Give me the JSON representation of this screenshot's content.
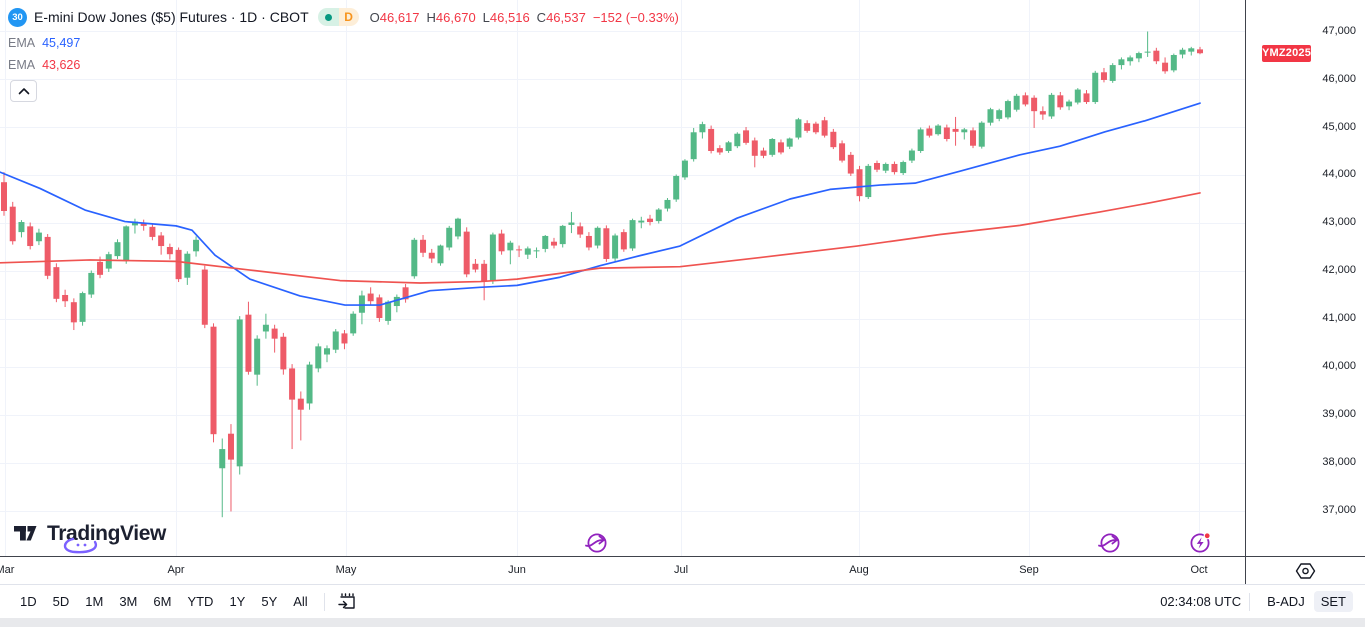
{
  "header": {
    "symbol_logo_text": "30",
    "title": "E-mini Dow Jones ($5) Futures · 1D · CBOT",
    "market_status": "open",
    "interval_badge": "D",
    "ohlc": {
      "o_label": "O",
      "o": "46,617",
      "h_label": "H",
      "h": "46,670",
      "l_label": "L",
      "l": "46,516",
      "c_label": "C",
      "c": "46,537",
      "change": "−152 (−0.33%)"
    },
    "indicators": [
      {
        "label": "EMA",
        "value": "45,497",
        "color": "#2962ff"
      },
      {
        "label": "EMA",
        "value": "43,626",
        "color": "#f23645"
      }
    ]
  },
  "watermark": {
    "brand": "TradingView"
  },
  "price_axis": {
    "last_price_label": "YMZ2025",
    "last_label_color": "#f23645"
  },
  "toolbar": {
    "ranges": [
      "1D",
      "5D",
      "1M",
      "3M",
      "6M",
      "YTD",
      "1Y",
      "5Y",
      "All"
    ],
    "go_to_date_icon": "calendar-arrow-icon",
    "time": "02:34:08 UTC",
    "adjustments": [
      {
        "label": "B-ADJ",
        "active": false
      },
      {
        "label": "SET",
        "active": true
      }
    ]
  },
  "chart_data": {
    "type": "candlestick",
    "title": "E-mini Dow Jones ($5) Futures",
    "exchange": "CBOT",
    "contract": "YMZ2025",
    "interval": "1D",
    "last_price": 46537,
    "last_bar": {
      "open": 46617,
      "high": 46670,
      "low": 46516,
      "close": 46537,
      "change": -152,
      "change_pct": -0.33
    },
    "grid": true,
    "ylim": [
      36062,
      47646
    ],
    "y_ticks": [
      37000,
      38000,
      39000,
      40000,
      41000,
      42000,
      43000,
      44000,
      45000,
      46000,
      47000
    ],
    "months": [
      "Mar",
      "Apr",
      "May",
      "Jun",
      "Jul",
      "Aug",
      "Sep",
      "Oct"
    ],
    "month_x": [
      5,
      176,
      346,
      517,
      681,
      859,
      1029,
      1199
    ],
    "x_range": [
      4,
      1200
    ],
    "up_color": "#54b987",
    "down_color": "#ee5b68",
    "candles": [
      [
        43850,
        44060,
        43150,
        43250
      ],
      [
        43340,
        43440,
        42550,
        42620
      ],
      [
        42810,
        43060,
        42700,
        43020
      ],
      [
        42930,
        43010,
        42450,
        42520
      ],
      [
        42620,
        42880,
        42540,
        42800
      ],
      [
        42710,
        42770,
        41830,
        41900
      ],
      [
        42080,
        42160,
        41350,
        41420
      ],
      [
        41500,
        41610,
        41250,
        41370
      ],
      [
        41350,
        41430,
        40770,
        40930
      ],
      [
        40940,
        41570,
        40860,
        41540
      ],
      [
        41510,
        42010,
        41440,
        41960
      ],
      [
        42190,
        42300,
        41850,
        41920
      ],
      [
        42050,
        42400,
        41980,
        42350
      ],
      [
        42310,
        42660,
        42250,
        42600
      ],
      [
        42220,
        42950,
        42150,
        42930
      ],
      [
        42950,
        43090,
        42780,
        43030
      ],
      [
        43010,
        43070,
        42840,
        42940
      ],
      [
        42920,
        42990,
        42640,
        42710
      ],
      [
        42740,
        42810,
        42340,
        42520
      ],
      [
        42500,
        42570,
        42240,
        42350
      ],
      [
        42440,
        42490,
        41770,
        41830
      ],
      [
        41860,
        42410,
        41710,
        42360
      ],
      [
        42410,
        42720,
        42300,
        42650
      ],
      [
        42030,
        42110,
        40810,
        40880
      ],
      [
        40840,
        40910,
        38430,
        38600
      ],
      [
        37890,
        38510,
        36870,
        38290
      ],
      [
        38610,
        38810,
        36990,
        38070
      ],
      [
        37930,
        41060,
        37760,
        40990
      ],
      [
        41090,
        41360,
        39840,
        39900
      ],
      [
        39840,
        40660,
        39610,
        40590
      ],
      [
        40740,
        41110,
        40590,
        40880
      ],
      [
        40800,
        40880,
        40300,
        40590
      ],
      [
        40630,
        40710,
        39840,
        39950
      ],
      [
        39970,
        40060,
        38290,
        39320
      ],
      [
        39340,
        39490,
        38470,
        39110
      ],
      [
        39240,
        40110,
        39110,
        40050
      ],
      [
        39970,
        40490,
        39890,
        40430
      ],
      [
        40260,
        40450,
        40100,
        40390
      ],
      [
        40360,
        40790,
        40290,
        40740
      ],
      [
        40700,
        40770,
        40370,
        40490
      ],
      [
        40700,
        41160,
        40650,
        41110
      ],
      [
        41130,
        41590,
        40890,
        41490
      ],
      [
        41530,
        41660,
        41290,
        41370
      ],
      [
        41450,
        41510,
        40940,
        41020
      ],
      [
        40960,
        41390,
        40880,
        41360
      ],
      [
        41270,
        41510,
        41140,
        41460
      ],
      [
        41660,
        41730,
        41340,
        41410
      ],
      [
        41890,
        42690,
        41840,
        42650
      ],
      [
        42650,
        42750,
        42290,
        42380
      ],
      [
        42380,
        42460,
        42170,
        42260
      ],
      [
        42160,
        42550,
        42110,
        42530
      ],
      [
        42490,
        42940,
        42430,
        42900
      ],
      [
        42720,
        43110,
        42660,
        43090
      ],
      [
        42820,
        42910,
        41870,
        41930
      ],
      [
        42150,
        42250,
        41970,
        42030
      ],
      [
        42150,
        42230,
        41390,
        41790
      ],
      [
        41790,
        42800,
        41730,
        42760
      ],
      [
        42780,
        42860,
        42340,
        42410
      ],
      [
        42430,
        42630,
        42140,
        42590
      ],
      [
        42450,
        42530,
        42290,
        42440
      ],
      [
        42340,
        42510,
        42250,
        42470
      ],
      [
        42410,
        42490,
        42270,
        42430
      ],
      [
        42460,
        42750,
        42390,
        42730
      ],
      [
        42610,
        42690,
        42470,
        42530
      ],
      [
        42560,
        42960,
        42490,
        42940
      ],
      [
        42960,
        43230,
        42790,
        43010
      ],
      [
        42930,
        43010,
        42690,
        42760
      ],
      [
        42730,
        42810,
        42430,
        42490
      ],
      [
        42530,
        42930,
        42470,
        42900
      ],
      [
        42890,
        42950,
        42190,
        42250
      ],
      [
        42260,
        42780,
        42200,
        42740
      ],
      [
        42810,
        42870,
        42400,
        42450
      ],
      [
        42470,
        43090,
        42420,
        43060
      ],
      [
        43010,
        43130,
        42890,
        43050
      ],
      [
        43090,
        43170,
        42950,
        43020
      ],
      [
        43040,
        43310,
        42990,
        43280
      ],
      [
        43300,
        43520,
        43240,
        43480
      ],
      [
        43490,
        44010,
        43440,
        43980
      ],
      [
        43950,
        44330,
        43900,
        44300
      ],
      [
        44330,
        44980,
        44280,
        44890
      ],
      [
        44890,
        45110,
        44760,
        45060
      ],
      [
        44960,
        45030,
        44450,
        44500
      ],
      [
        44560,
        44620,
        44420,
        44470
      ],
      [
        44500,
        44710,
        44460,
        44680
      ],
      [
        44600,
        44890,
        44560,
        44860
      ],
      [
        44930,
        45000,
        44630,
        44670
      ],
      [
        44720,
        44780,
        44160,
        44400
      ],
      [
        44510,
        44570,
        44350,
        44400
      ],
      [
        44420,
        44770,
        44380,
        44750
      ],
      [
        44680,
        44740,
        44430,
        44470
      ],
      [
        44590,
        44780,
        44540,
        44760
      ],
      [
        44780,
        45190,
        44740,
        45160
      ],
      [
        45080,
        45140,
        44880,
        44920
      ],
      [
        45070,
        45110,
        44850,
        44890
      ],
      [
        45140,
        45210,
        44780,
        44820
      ],
      [
        44900,
        44960,
        44540,
        44580
      ],
      [
        44660,
        44720,
        44260,
        44300
      ],
      [
        44420,
        44480,
        43980,
        44030
      ],
      [
        44120,
        44190,
        43450,
        43560
      ],
      [
        43540,
        44230,
        43500,
        44190
      ],
      [
        44250,
        44300,
        44060,
        44110
      ],
      [
        44090,
        44260,
        44040,
        44230
      ],
      [
        44230,
        44280,
        44010,
        44060
      ],
      [
        44040,
        44300,
        44000,
        44270
      ],
      [
        44300,
        44550,
        44250,
        44510
      ],
      [
        44500,
        44990,
        44460,
        44950
      ],
      [
        44970,
        45030,
        44780,
        44820
      ],
      [
        44850,
        45060,
        44820,
        45030
      ],
      [
        44990,
        45050,
        44700,
        44750
      ],
      [
        44960,
        45210,
        44610,
        44900
      ],
      [
        44890,
        44980,
        44740,
        44950
      ],
      [
        44930,
        44990,
        44560,
        44610
      ],
      [
        44590,
        45120,
        44550,
        45090
      ],
      [
        45090,
        45400,
        45030,
        45370
      ],
      [
        45170,
        45380,
        45120,
        45350
      ],
      [
        45200,
        45570,
        45160,
        45540
      ],
      [
        45360,
        45690,
        45320,
        45650
      ],
      [
        45660,
        45720,
        45430,
        45470
      ],
      [
        45610,
        45660,
        44980,
        45330
      ],
      [
        45330,
        45430,
        45150,
        45260
      ],
      [
        45220,
        45710,
        45170,
        45670
      ],
      [
        45660,
        45730,
        45360,
        45410
      ],
      [
        45430,
        45570,
        45350,
        45530
      ],
      [
        45510,
        45810,
        45470,
        45780
      ],
      [
        45700,
        45770,
        45480,
        45520
      ],
      [
        45520,
        46170,
        45480,
        46130
      ],
      [
        46140,
        46230,
        45930,
        45980
      ],
      [
        45960,
        46330,
        45920,
        46290
      ],
      [
        46290,
        46450,
        46200,
        46410
      ],
      [
        46370,
        46490,
        46280,
        46450
      ],
      [
        46430,
        46570,
        46350,
        46540
      ],
      [
        46550,
        46990,
        46460,
        46570
      ],
      [
        46590,
        46650,
        46310,
        46370
      ],
      [
        46340,
        46450,
        46110,
        46160
      ],
      [
        46180,
        46530,
        46140,
        46500
      ],
      [
        46510,
        46650,
        46430,
        46610
      ],
      [
        46570,
        46670,
        46490,
        46640
      ],
      [
        46617,
        46670,
        46516,
        46537
      ]
    ],
    "series": [
      {
        "name": "EMA fast",
        "type": "line",
        "color": "#2962ff",
        "last_value": 45497,
        "points": [
          [
            0,
            44060
          ],
          [
            40,
            43720
          ],
          [
            85,
            43270
          ],
          [
            125,
            43030
          ],
          [
            176,
            42940
          ],
          [
            192,
            42850
          ],
          [
            215,
            42330
          ],
          [
            250,
            41830
          ],
          [
            300,
            41480
          ],
          [
            345,
            41290
          ],
          [
            380,
            41290
          ],
          [
            430,
            41590
          ],
          [
            480,
            41660
          ],
          [
            517,
            41700
          ],
          [
            560,
            41870
          ],
          [
            600,
            42110
          ],
          [
            640,
            42320
          ],
          [
            680,
            42520
          ],
          [
            737,
            43100
          ],
          [
            790,
            43500
          ],
          [
            830,
            43700
          ],
          [
            880,
            43790
          ],
          [
            915,
            43830
          ],
          [
            960,
            44080
          ],
          [
            1020,
            44420
          ],
          [
            1060,
            44600
          ],
          [
            1105,
            44900
          ],
          [
            1145,
            45130
          ],
          [
            1200,
            45497
          ]
        ]
      },
      {
        "name": "EMA slow",
        "type": "line",
        "color": "#ef5350",
        "last_value": 43626,
        "points": [
          [
            0,
            42170
          ],
          [
            90,
            42230
          ],
          [
            176,
            42200
          ],
          [
            250,
            42020
          ],
          [
            340,
            41800
          ],
          [
            420,
            41750
          ],
          [
            480,
            41780
          ],
          [
            517,
            41830
          ],
          [
            560,
            41950
          ],
          [
            600,
            42060
          ],
          [
            680,
            42090
          ],
          [
            760,
            42280
          ],
          [
            857,
            42520
          ],
          [
            940,
            42760
          ],
          [
            1020,
            42950
          ],
          [
            1100,
            43230
          ],
          [
            1150,
            43420
          ],
          [
            1200,
            43626
          ]
        ]
      }
    ],
    "event_markers": [
      {
        "type": "contract-rollover",
        "x": 597
      },
      {
        "type": "contract-rollover",
        "x": 1110
      },
      {
        "type": "news-flash",
        "x": 1200
      }
    ]
  }
}
